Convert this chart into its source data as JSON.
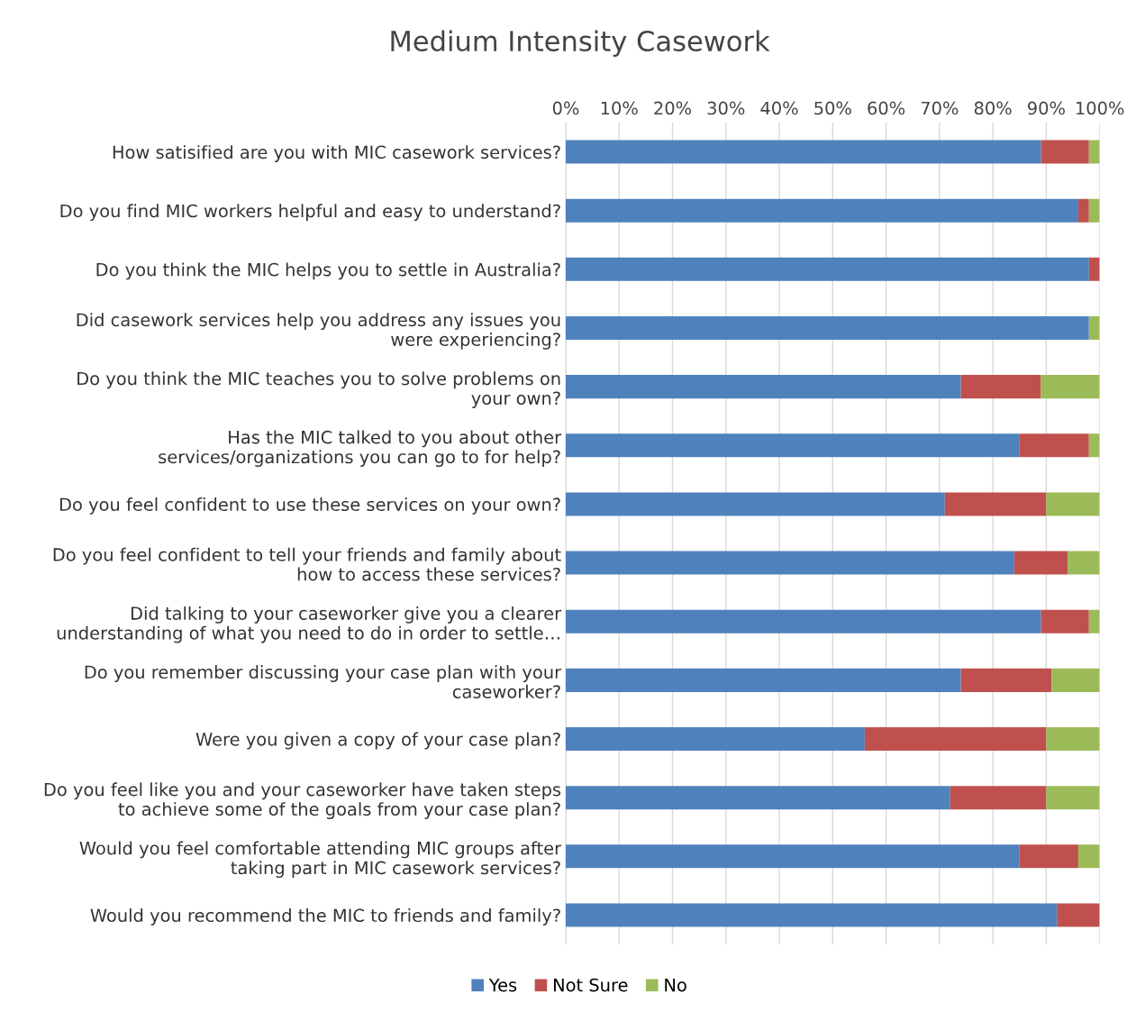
{
  "chart_data": {
    "type": "bar",
    "title": "Medium Intensity Casework",
    "orientation": "horizontal",
    "stacked": true,
    "categories": [
      "How satisified are you with MIC casework services?",
      "Do you find MIC workers helpful and easy to understand?",
      "Do you think the MIC helps you to settle in Australia?",
      "Did casework services help you address any issues you\nwere experiencing?",
      "Do you think the MIC teaches you to solve problems on\nyour own?",
      "Has the MIC talked to you about other\nservices/organizations you can go to for help?",
      "Do you feel confident to use these services on your own?",
      "Do you feel confident to tell your friends and family about\nhow to access these services?",
      "Did talking to your caseworker give you a clearer\nunderstanding of what you need to do in order to settle…",
      "Do you remember discussing your case plan with your\ncaseworker?",
      "Were you given a copy of your case plan?",
      "Do you feel like you and your caseworker have taken steps\nto achieve some of the goals from your case plan?",
      "Would you feel comfortable attending MIC groups after\ntaking part in MIC casework services?",
      "Would you recommend the MIC to friends and family?"
    ],
    "series": [
      {
        "name": "Yes",
        "color": "#4f81bd",
        "values": [
          89,
          96,
          98,
          98,
          74,
          85,
          71,
          84,
          89,
          74,
          56,
          72,
          85,
          92
        ]
      },
      {
        "name": "Not Sure",
        "color": "#c0504d",
        "values": [
          9,
          2,
          2,
          0,
          15,
          13,
          19,
          10,
          9,
          17,
          34,
          18,
          11,
          8
        ]
      },
      {
        "name": "No",
        "color": "#9bbb59",
        "values": [
          2,
          2,
          0,
          2,
          11,
          2,
          10,
          6,
          2,
          9,
          10,
          10,
          4,
          0
        ]
      }
    ],
    "xlim": [
      0,
      100
    ],
    "xticks": [
      {
        "value": 0,
        "label": "0%"
      },
      {
        "value": 10,
        "label": "10%"
      },
      {
        "value": 20,
        "label": "20%"
      },
      {
        "value": 30,
        "label": "30%"
      },
      {
        "value": 40,
        "label": "40%"
      },
      {
        "value": 50,
        "label": "50%"
      },
      {
        "value": 60,
        "label": "60%"
      },
      {
        "value": 70,
        "label": "70%"
      },
      {
        "value": 80,
        "label": "80%"
      },
      {
        "value": 90,
        "label": "90%"
      },
      {
        "value": 100,
        "label": "100%"
      }
    ],
    "grid": "x",
    "legend": "bottom"
  }
}
